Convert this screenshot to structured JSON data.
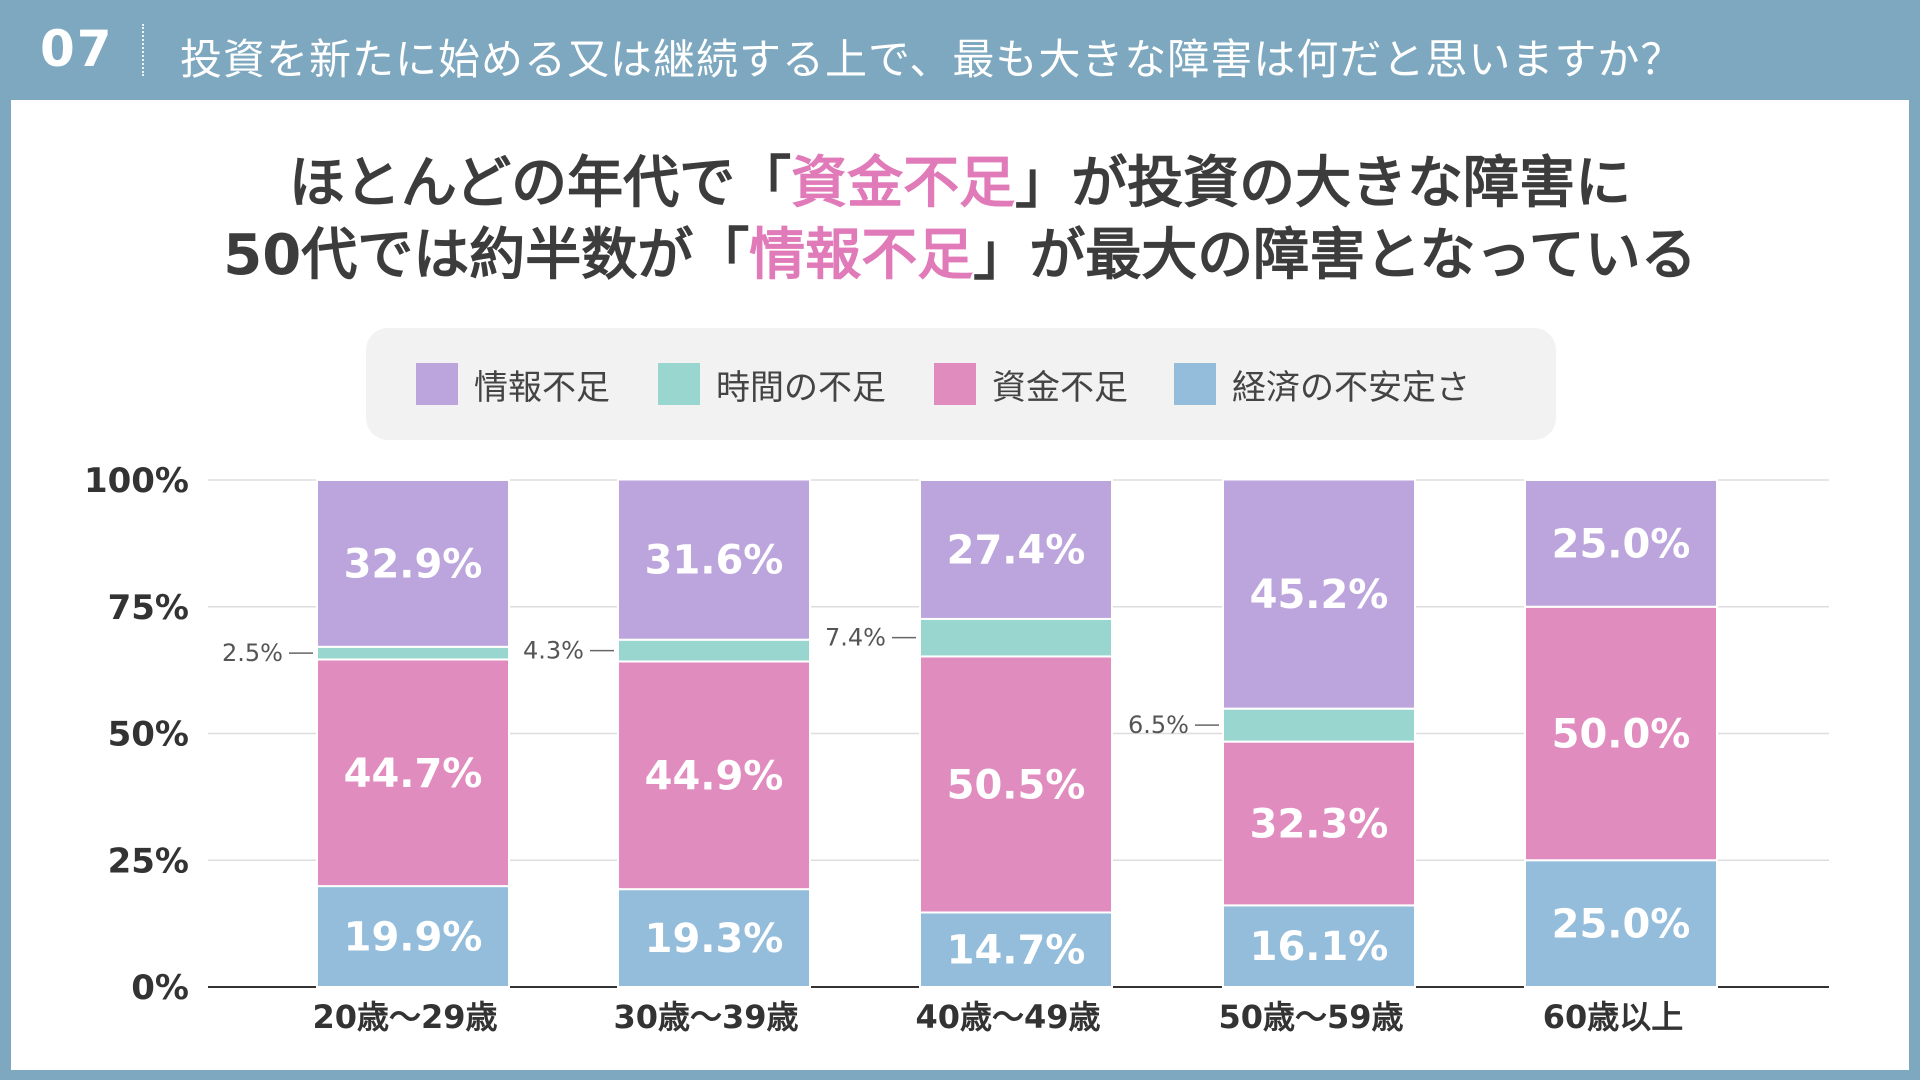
{
  "header": {
    "number": "07",
    "question": "投資を新たに始める又は継続する上で、最も大きな障害は何だと思いますか？"
  },
  "headline": {
    "line1_pre": "ほとんどの年代で「",
    "line1_hl": "資金不足",
    "line1_post": "」が投資の大きな障害に",
    "line2_pre": "50代では約半数が「",
    "line2_hl": "情報不足",
    "line2_post": "」が最大の障害となっている"
  },
  "colors": {
    "info": "#bca5dd",
    "time": "#99d6cf",
    "money": "#e08cbf",
    "economy": "#93bddb",
    "highlight": "#e07ab8"
  },
  "chart_data": {
    "type": "bar",
    "stacked": true,
    "categories": [
      "20歳〜29歳",
      "30歳〜39歳",
      "40歳〜49歳",
      "50歳〜59歳",
      "60歳以上"
    ],
    "series": [
      {
        "name": "経済の不安定さ",
        "key": "economy",
        "values": [
          19.9,
          19.3,
          14.7,
          16.1,
          25.0
        ],
        "labels": [
          "19.9%",
          "19.3%",
          "14.7%",
          "16.1%",
          "25.0%"
        ]
      },
      {
        "name": "資金不足",
        "key": "money",
        "values": [
          44.7,
          44.9,
          50.5,
          32.3,
          50.0
        ],
        "labels": [
          "44.7%",
          "44.9%",
          "50.5%",
          "32.3%",
          "50.0%"
        ]
      },
      {
        "name": "時間の不足",
        "key": "time",
        "values": [
          2.5,
          4.3,
          7.4,
          6.5,
          0
        ],
        "labels": [
          "2.5%",
          "4.3%",
          "7.4%",
          "6.5%",
          ""
        ]
      },
      {
        "name": "情報不足",
        "key": "info",
        "values": [
          32.9,
          31.6,
          27.4,
          45.2,
          25.0
        ],
        "labels": [
          "32.9%",
          "31.6%",
          "27.4%",
          "45.2%",
          "25.0%"
        ]
      }
    ],
    "legend_order": [
      "情報不足",
      "時間の不足",
      "資金不足",
      "経済の不安定さ"
    ],
    "yticks": [
      "0%",
      "25%",
      "50%",
      "75%",
      "100%"
    ],
    "ylim": [
      0,
      100
    ],
    "grid": true,
    "legend": "top"
  }
}
